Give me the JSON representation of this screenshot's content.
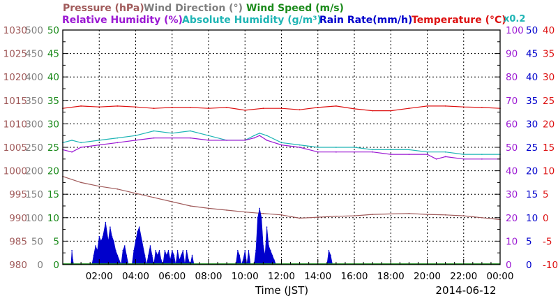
{
  "chart_data": {
    "type": "line",
    "legend": {
      "row1": [
        {
          "text": "Pressure (hPa)",
          "color": "#a05a5a"
        },
        {
          "text": "Wind Direction (°)",
          "color": "#808080"
        },
        {
          "text": "Wind Speed (m/s)",
          "color": "#1a8a1a"
        }
      ],
      "row2": [
        {
          "text": "Relative Humidity (%)",
          "color": "#9b19d3"
        },
        {
          "text": "Absolute Humidity (g/m³)",
          "color": "#1fb5b5"
        },
        {
          "text": "Rain Rate(mm/h)",
          "color": "#0000cc"
        },
        {
          "text": "Temperature (°C)",
          "color": "#dd1111"
        }
      ],
      "multiplier": {
        "text": "x0.2",
        "color": "#1fb5b5"
      }
    },
    "xlabel": "Time (JST)",
    "date": "2014-06-12",
    "x_ticks": [
      "02:00",
      "04:00",
      "06:00",
      "08:00",
      "10:00",
      "12:00",
      "14:00",
      "16:00",
      "18:00",
      "20:00",
      "22:00",
      "00:00"
    ],
    "xlim": [
      0,
      24
    ],
    "axes": {
      "pressure": {
        "color": "#a05a5a",
        "ticks": [
          "1030",
          "1025",
          "1020",
          "1015",
          "1010",
          "1005",
          "1000",
          "995",
          "990",
          "985",
          "980"
        ],
        "ylim": [
          980,
          1030
        ]
      },
      "wind_direction": {
        "color": "#808080",
        "ticks": [
          "500",
          "450",
          "400",
          "350",
          "300",
          "250",
          "200",
          "150",
          "100",
          "50",
          "0"
        ],
        "ylim": [
          0,
          500
        ]
      },
      "wind_speed": {
        "color": "#1a8a1a",
        "ticks": [
          "50",
          "45",
          "40",
          "35",
          "30",
          "25",
          "20",
          "15",
          "10",
          "5",
          "0"
        ],
        "ylim": [
          0,
          50
        ]
      },
      "humidity": {
        "color": "#9b19d3",
        "ticks": [
          "100",
          "90",
          "80",
          "70",
          "60",
          "50",
          "40",
          "30",
          "20",
          "10",
          "0"
        ],
        "ylim": [
          0,
          100
        ]
      },
      "rain_rate": {
        "color": "#0000cc",
        "ticks": [
          "50",
          "45",
          "40",
          "35",
          "30",
          "25",
          "20",
          "15",
          "10",
          "5",
          "0"
        ],
        "ylim": [
          0,
          50
        ]
      },
      "temperature": {
        "color": "#dd1111",
        "ticks": [
          "40",
          "35",
          "30",
          "25",
          "20",
          "15",
          "10",
          "5",
          "0",
          "-5",
          "-10"
        ],
        "ylim": [
          -10,
          40
        ]
      }
    },
    "series": [
      {
        "name": "Temperature (°C)",
        "axis": "temperature",
        "color": "#dd1111",
        "x": [
          0,
          1,
          2,
          3,
          4,
          5,
          6,
          7,
          8,
          9,
          10,
          11,
          12,
          13,
          14,
          15,
          16,
          17,
          18,
          19,
          20,
          21,
          22,
          23,
          24
        ],
        "y": [
          23.3,
          23.8,
          23.6,
          23.8,
          23.6,
          23.3,
          23.5,
          23.5,
          23.3,
          23.5,
          22.9,
          23.3,
          23.3,
          23.0,
          23.5,
          23.8,
          23.2,
          22.8,
          22.8,
          23.3,
          23.8,
          23.8,
          23.6,
          23.5,
          23.3
        ]
      },
      {
        "name": "Absolute Humidity (g/m³)",
        "axis": "humidity",
        "color": "#1fb5b5",
        "x": [
          0,
          0.5,
          1,
          2,
          3,
          4,
          5,
          6,
          7,
          8,
          9,
          10,
          10.5,
          10.8,
          11.2,
          12,
          13,
          14,
          15,
          16,
          17,
          18,
          19,
          20,
          21,
          22,
          23,
          24
        ],
        "y": [
          52,
          53,
          52,
          53,
          54,
          55,
          57,
          56,
          57,
          55,
          53,
          53,
          55,
          56,
          55,
          52,
          51,
          50,
          50,
          50,
          49,
          49,
          49,
          48,
          48,
          47,
          47,
          47
        ]
      },
      {
        "name": "Relative Humidity (%)",
        "axis": "humidity",
        "color": "#9b19d3",
        "x": [
          0,
          0.5,
          1,
          2,
          3,
          4,
          5,
          6,
          7,
          8,
          9,
          10,
          10.5,
          10.8,
          11.2,
          12,
          13,
          14,
          15,
          16,
          17,
          18,
          19,
          20,
          20.5,
          21,
          22,
          23,
          24
        ],
        "y": [
          49,
          48,
          50,
          51,
          52,
          53,
          54,
          54,
          54,
          53,
          53,
          53,
          54,
          55,
          53,
          51,
          50,
          48,
          48,
          48,
          48,
          47,
          47,
          47,
          45,
          46,
          45,
          45,
          45
        ]
      },
      {
        "name": "Pressure (hPa)",
        "axis": "pressure",
        "color": "#a05a5a",
        "x": [
          0,
          1,
          2,
          3,
          4,
          5,
          6,
          7,
          8,
          9,
          10,
          11,
          12,
          13,
          14,
          15,
          16,
          17,
          18,
          19,
          20,
          21,
          22,
          23,
          24
        ],
        "y": [
          998.8,
          997.5,
          996.7,
          996.1,
          995.2,
          994.3,
          993.4,
          992.5,
          992.0,
          991.6,
          991.2,
          990.9,
          990.6,
          989.9,
          990.1,
          990.3,
          990.4,
          990.7,
          990.8,
          990.9,
          990.7,
          990.6,
          990.4,
          990.0,
          989.6
        ]
      },
      {
        "name": "Rain Rate(mm/h)",
        "axis": "rain_rate",
        "color": "#0000cc",
        "type": "area",
        "x": [
          0,
          0.45,
          0.5,
          0.55,
          0.6,
          1,
          1.6,
          1.7,
          1.8,
          1.9,
          2.0,
          2.1,
          2.2,
          2.35,
          2.5,
          2.6,
          2.7,
          2.8,
          2.9,
          3.0,
          3.2,
          3.3,
          3.4,
          3.5,
          3.6,
          3.8,
          3.9,
          4.0,
          4.1,
          4.2,
          4.35,
          4.5,
          4.6,
          4.7,
          4.8,
          4.9,
          5.0,
          5.1,
          5.2,
          5.3,
          5.4,
          5.5,
          5.6,
          5.7,
          5.8,
          5.9,
          6.0,
          6.1,
          6.2,
          6.3,
          6.4,
          6.5,
          6.6,
          6.7,
          6.8,
          6.9,
          7.0,
          7.1,
          7.2,
          9.5,
          9.6,
          9.7,
          9.8,
          9.9,
          10.0,
          10.1,
          10.2,
          10.3,
          10.5,
          10.6,
          10.7,
          10.8,
          10.9,
          11.0,
          11.1,
          11.2,
          11.3,
          11.4,
          11.5,
          11.6,
          11.7,
          14.5,
          14.6,
          14.7,
          14.8,
          24
        ],
        "y": [
          0,
          0,
          3,
          1,
          0,
          0,
          0,
          2,
          4,
          3,
          6,
          5,
          6,
          9,
          5,
          8,
          6,
          5,
          3,
          2,
          0,
          3,
          4,
          2,
          0,
          0,
          3,
          5,
          7,
          8,
          5,
          2,
          0,
          2,
          4,
          2,
          0,
          3,
          2,
          3,
          1,
          0,
          3,
          2,
          3,
          1,
          3,
          2,
          0,
          3,
          1,
          2,
          3,
          0,
          3,
          1,
          0,
          2,
          0,
          0,
          3,
          2,
          0,
          1,
          3,
          0,
          3,
          0,
          0,
          3,
          10,
          12,
          10,
          4,
          2,
          8,
          4,
          3,
          2,
          1,
          0,
          0,
          3,
          2,
          0,
          0
        ]
      }
    ]
  }
}
